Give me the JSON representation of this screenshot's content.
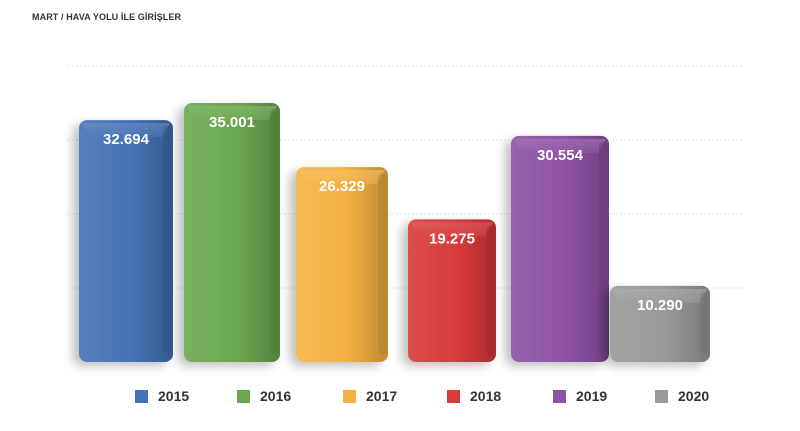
{
  "title": "MART / HAVA YOLU İLE GİRİŞLER",
  "chart_data": {
    "type": "bar",
    "title": "MART / HAVA YOLU İLE GİRİŞLER",
    "categories": [
      "2015",
      "2016",
      "2017",
      "2018",
      "2019",
      "2020"
    ],
    "series": [
      {
        "values": [
          32694,
          35001,
          26329,
          19275,
          30554,
          10290
        ],
        "value_labels": [
          "32.694",
          "35.001",
          "26.329",
          "19.275",
          "30.554",
          "10.290"
        ]
      }
    ],
    "colors": [
      "#4472b5",
      "#6aa84f",
      "#f4b142",
      "#d93a3a",
      "#8e52a3",
      "#9a9a9a"
    ],
    "legend_labels": [
      "2015",
      "2016",
      "2017",
      "2018",
      "2019",
      "2020"
    ],
    "ylim": [
      0,
      40000
    ],
    "grid": true,
    "legend_position": "bottom",
    "style": "3d-bevel"
  }
}
